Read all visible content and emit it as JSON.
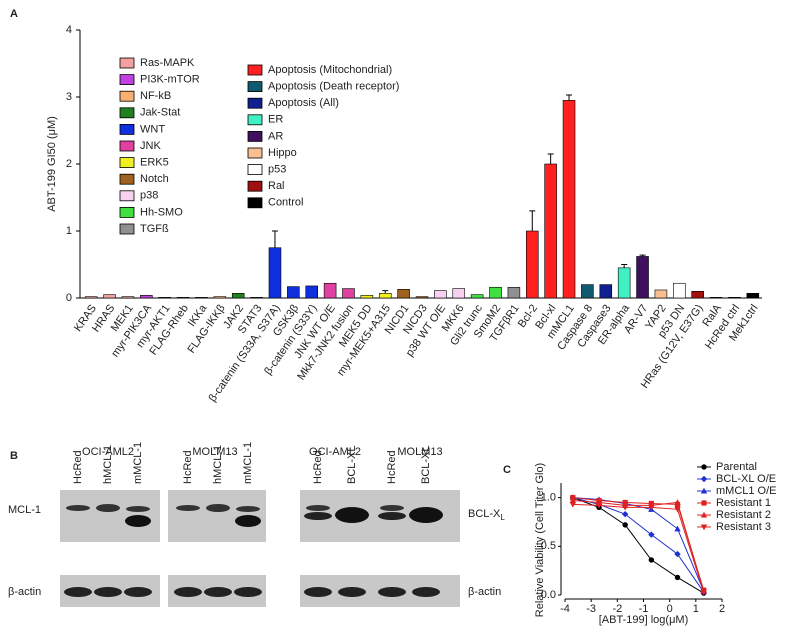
{
  "chart_data": [
    {
      "type": "bar",
      "label": "A",
      "ylabel": "ABT-199 GI50 (μM)",
      "ylim": [
        0,
        4
      ],
      "yticks": [
        0,
        1,
        2,
        3,
        4
      ],
      "categories": [
        "KRAS",
        "HRAS",
        "MEK1",
        "myr-PIK3CA",
        "myr-AKT1",
        "FLAG-Rheb",
        "IKKa",
        "FLAG-IKKβ",
        "JAK2",
        "STAT3",
        "β-catenin (S33A, S37A)",
        "GSK3β",
        "β-catenin (S33Y)",
        "JNK WT O/E",
        "Mkk7-JNK2 fusion",
        "MEK5 DD",
        "myr-MEK5+A315",
        "NICD1",
        "NICD3",
        "p38 WT O/E",
        "MKK6",
        "Gli2 trunc",
        "SmoM2",
        "TGFβR1",
        "Bcl-2",
        "Bcl-xl",
        "mMCL1",
        "Caspase 8",
        "Caspase3",
        "ER-alpha",
        "AR-V7",
        "YAP2",
        "p53 DN",
        "HRas (G12V, E37G)",
        "RalA",
        "HcRed ctrl",
        "Mek1ctrl"
      ],
      "values": [
        0.02,
        0.05,
        0.02,
        0.04,
        0.01,
        0.01,
        0.01,
        0.02,
        0.07,
        0.01,
        0.75,
        0.17,
        0.18,
        0.22,
        0.14,
        0.04,
        0.07,
        0.13,
        0.02,
        0.11,
        0.14,
        0.05,
        0.16,
        0.16,
        1.0,
        2.0,
        2.95,
        0.2,
        0.2,
        0.45,
        0.62,
        0.12,
        0.22,
        0.1,
        0.01,
        0.01,
        0.07
      ],
      "errors": [
        null,
        null,
        null,
        null,
        null,
        null,
        null,
        null,
        null,
        null,
        0.25,
        null,
        null,
        null,
        null,
        null,
        0.04,
        null,
        null,
        null,
        null,
        null,
        null,
        null,
        0.3,
        0.15,
        0.08,
        null,
        null,
        0.05,
        0.02,
        null,
        null,
        null,
        null,
        null,
        null
      ],
      "colors": [
        "#f4a0a0",
        "#f4a0a0",
        "#f4a0a0",
        "#c040e0",
        "#c040e0",
        "#c040e0",
        "#f8b070",
        "#f8b070",
        "#208020",
        "#208020",
        "#1030e0",
        "#1030e0",
        "#1030e0",
        "#e040a0",
        "#e040a0",
        "#f0f020",
        "#f0f020",
        "#a06020",
        "#a06020",
        "#f8d0f0",
        "#f8d0f0",
        "#40e040",
        "#40e040",
        "#909090",
        "#ff2020",
        "#ff2020",
        "#ff2020",
        "#105a70",
        "#102090",
        "#40f0c0",
        "#401060",
        "#f8c090",
        "#ffffff",
        "#a01010",
        "#a01010",
        "#000000",
        "#000000"
      ],
      "legend": [
        {
          "name": "Ras-MAPK",
          "color": "#f4a0a0"
        },
        {
          "name": "PI3K-mTOR",
          "color": "#c040e0"
        },
        {
          "name": "NF-kB",
          "color": "#f8b070"
        },
        {
          "name": "Jak-Stat",
          "color": "#208020"
        },
        {
          "name": "WNT",
          "color": "#1030e0"
        },
        {
          "name": "JNK",
          "color": "#e040a0"
        },
        {
          "name": "ERK5",
          "color": "#f0f020"
        },
        {
          "name": "Notch",
          "color": "#a06020"
        },
        {
          "name": "p38",
          "color": "#f8d0f0"
        },
        {
          "name": "Hh-SMO",
          "color": "#40e040"
        },
        {
          "name": "TGFß",
          "color": "#909090"
        },
        {
          "name": "Apoptosis (Mitochondrial)",
          "color": "#ff2020"
        },
        {
          "name": "Apoptosis  (Death receptor)",
          "color": "#105a70"
        },
        {
          "name": "Apoptosis (All)",
          "color": "#102090"
        },
        {
          "name": "ER",
          "color": "#40f0c0"
        },
        {
          "name": "AR",
          "color": "#401060"
        },
        {
          "name": "Hippo",
          "color": "#f8c090"
        },
        {
          "name": "p53",
          "color": "#ffffff"
        },
        {
          "name": "Ral",
          "color": "#a01010"
        },
        {
          "name": "Control",
          "color": "#000000"
        }
      ]
    },
    {
      "type": "line",
      "label": "C",
      "xlabel": "[ABT-199] log(μM)",
      "ylabel": "Relative Viability (Cell Titer Glo)",
      "xlim": [
        -4,
        2
      ],
      "xticks": [
        -4,
        -3,
        -2,
        -1,
        0,
        1,
        2
      ],
      "ylim": [
        0,
        1.15
      ],
      "yticks": [
        {
          "value": 0,
          "label": "0.0"
        },
        {
          "value": 0.5,
          "label": "0.5"
        },
        {
          "value": 1,
          "label": "1.0"
        }
      ],
      "x": [
        -3.7,
        -2.7,
        -1.7,
        -0.7,
        0.3,
        1.3
      ],
      "series": [
        {
          "name": "Parental",
          "color": "#000000",
          "marker": "circle",
          "values": [
            1.0,
            0.9,
            0.72,
            0.36,
            0.18,
            0.02
          ]
        },
        {
          "name": "BCL-XL O/E",
          "color": "#2030d0",
          "marker": "diamond",
          "values": [
            1.0,
            0.93,
            0.83,
            0.62,
            0.42,
            0.03
          ]
        },
        {
          "name": "mMCL1 O/E",
          "color": "#2030d0",
          "marker": "triangle",
          "values": [
            1.0,
            0.98,
            0.94,
            0.88,
            0.68,
            0.04
          ]
        },
        {
          "name": "Resistant 1",
          "color": "#e02020",
          "marker": "square",
          "values": [
            1.0,
            0.97,
            0.95,
            0.94,
            0.93,
            0.05
          ]
        },
        {
          "name": "Resistant 2",
          "color": "#e02020",
          "marker": "triangle",
          "values": [
            0.97,
            0.95,
            0.92,
            0.92,
            0.95,
            0.04
          ]
        },
        {
          "name": "Resistant 3",
          "color": "#e02020",
          "marker": "triangle-down",
          "values": [
            0.93,
            0.92,
            0.9,
            0.9,
            0.88,
            0.03
          ]
        }
      ]
    }
  ],
  "blots": {
    "label": "B",
    "cell_lines": [
      "OCI-AML2",
      "MOLM13",
      "OCI-AML2",
      "MOLM13"
    ],
    "lanes": [
      "HcRed",
      "hMCL-1",
      "mMCL-1",
      "HcRed",
      "hMCL-1",
      "mMCL-1",
      "HcRed",
      "BCL-XL",
      "HcRed",
      "BCL-XL"
    ],
    "left_rows": [
      "MCL-1",
      "β-actin"
    ],
    "right_rows": [
      {
        "text": "BCL-X",
        "subscript": "L"
      },
      "β-actin"
    ]
  }
}
